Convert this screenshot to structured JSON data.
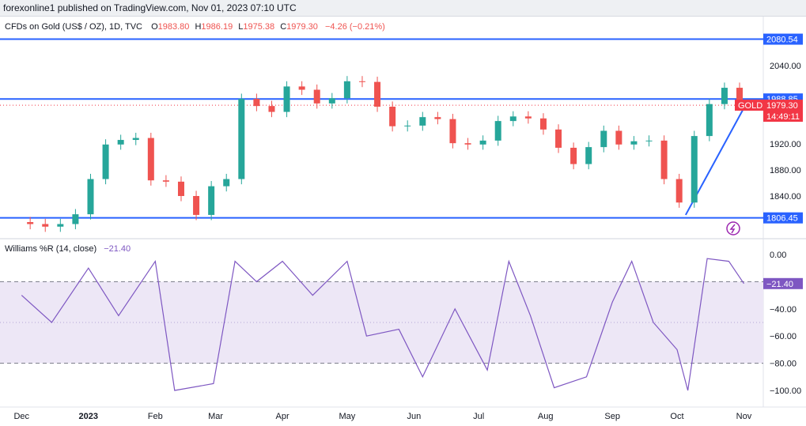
{
  "header": {
    "text": "forexonline1 published on TradingView.com, Nov 01, 2023 07:10 UTC"
  },
  "legend": {
    "symbol": "CFDs on Gold (US$ / OZ), 1D, TVC",
    "o_label": "O",
    "o": "1983.80",
    "h_label": "H",
    "h": "1986.19",
    "l_label": "L",
    "l": "1975.38",
    "c_label": "C",
    "c": "1979.30",
    "change": "−4.26 (−0.21%)"
  },
  "wr_legend": {
    "name": "Williams %R (14, close)",
    "value": "−21.40"
  },
  "colors": {
    "up": "#26a69a",
    "down": "#ef5350",
    "level_line": "#2962ff",
    "wr_line": "#7e57c2",
    "wr_band": "#ede7f6",
    "price_tag_red": "#f23645",
    "gold_dotted": "#f23645"
  },
  "chart_data": [
    {
      "type": "candlestick",
      "title": "CFDs on Gold (US$ / OZ), 1D, TVC",
      "x_ticks": [
        "Dec",
        "2023",
        "Feb",
        "Mar",
        "Apr",
        "May",
        "Jun",
        "Jul",
        "Aug",
        "Sep",
        "Oct",
        "Nov"
      ],
      "y_ticks": [
        "2040.00",
        "1920.00",
        "1880.00",
        "1840.00"
      ],
      "ylim": [
        1800,
        2100
      ],
      "levels": [
        {
          "label": "2080.54",
          "value": 2080.54
        },
        {
          "label": "1988.85",
          "value": 1988.85
        },
        {
          "label": "1806.45",
          "value": 1806.45
        }
      ],
      "last_price": {
        "symbol": "GOLD",
        "value": "1979.30",
        "countdown": "14:49:11"
      },
      "trend_line": {
        "from": [
          "2023-10-05",
          1811
        ],
        "to": [
          "2023-11-01",
          1975
        ]
      },
      "series": [
        {
          "x": [
            "2022-11-28",
            "2022-12-05",
            "2022-12-12",
            "2022-12-19",
            "2022-12-26",
            "2023-01-02",
            "2023-01-09",
            "2023-01-16",
            "2023-01-23",
            "2023-01-30",
            "2023-02-06",
            "2023-02-13",
            "2023-02-20",
            "2023-02-27",
            "2023-03-06",
            "2023-03-13",
            "2023-03-20",
            "2023-03-27",
            "2023-04-03",
            "2023-04-10",
            "2023-04-17",
            "2023-04-24",
            "2023-05-01",
            "2023-05-08",
            "2023-05-15",
            "2023-05-22",
            "2023-05-29",
            "2023-06-05",
            "2023-06-12",
            "2023-06-19",
            "2023-06-26",
            "2023-07-03",
            "2023-07-10",
            "2023-07-17",
            "2023-07-24",
            "2023-07-31",
            "2023-08-07",
            "2023-08-14",
            "2023-08-21",
            "2023-08-28",
            "2023-09-04",
            "2023-09-11",
            "2023-09-18",
            "2023-09-25",
            "2023-10-02",
            "2023-10-09",
            "2023-10-16",
            "2023-10-23",
            "2023-10-30"
          ],
          "close": [
            1800,
            1797,
            1793,
            1797,
            1812,
            1866,
            1919,
            1926,
            1929,
            1864,
            1862,
            1840,
            1811,
            1855,
            1866,
            1989,
            1978,
            1969,
            2008,
            2003,
            1982,
            1990,
            2016,
            2015,
            1977,
            1947,
            1948,
            1961,
            1958,
            1921,
            1919,
            1925,
            1955,
            1962,
            1959,
            1942,
            1914,
            1889,
            1915,
            1940,
            1919,
            1924,
            1925,
            1866,
            1830,
            1932,
            1981,
            2006,
            1979.3
          ]
        }
      ]
    },
    {
      "type": "line",
      "title": "Williams %R (14, close)",
      "y_ticks": [
        "0.00",
        "−40.00",
        "−60.00",
        "−80.00",
        "−100.00"
      ],
      "ylim": [
        -100,
        0
      ],
      "band": [
        -80,
        -20
      ],
      "current": "−21.40",
      "series": [
        {
          "x": [
            "2022-12-01",
            "2022-12-15",
            "2023-01-01",
            "2023-01-15",
            "2023-02-01",
            "2023-02-10",
            "2023-02-28",
            "2023-03-10",
            "2023-03-20",
            "2023-04-01",
            "2023-04-15",
            "2023-05-01",
            "2023-05-10",
            "2023-05-25",
            "2023-06-05",
            "2023-06-20",
            "2023-07-05",
            "2023-07-15",
            "2023-07-25",
            "2023-08-05",
            "2023-08-20",
            "2023-09-01",
            "2023-09-10",
            "2023-09-20",
            "2023-10-01",
            "2023-10-06",
            "2023-10-15",
            "2023-10-25",
            "2023-11-01"
          ],
          "values": [
            -30,
            -50,
            -10,
            -45,
            -5,
            -100,
            -95,
            -5,
            -20,
            -5,
            -30,
            -5,
            -60,
            -55,
            -90,
            -40,
            -85,
            -5,
            -45,
            -98,
            -90,
            -35,
            -5,
            -50,
            -70,
            -100,
            -3,
            -5,
            -21.4
          ]
        }
      ]
    }
  ]
}
